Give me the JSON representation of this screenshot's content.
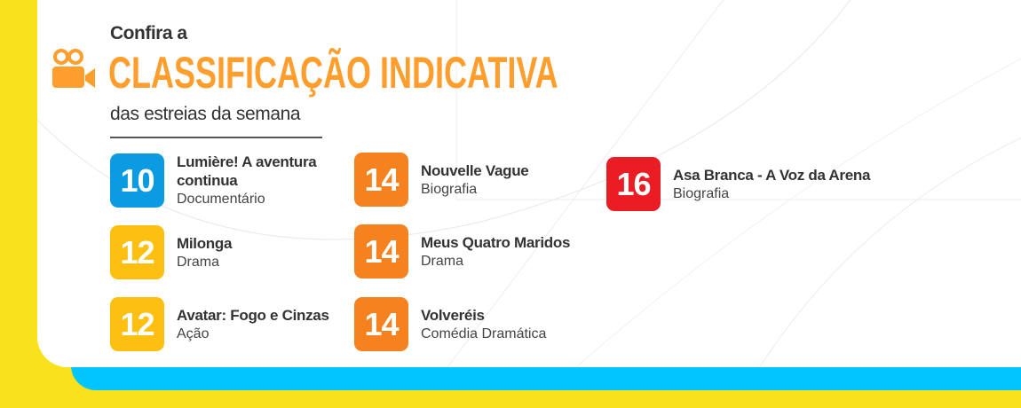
{
  "header": {
    "pre": "Confira a",
    "title": "CLASSIFICAÇÃO INDICATIVA",
    "sub": "das estreias da semana",
    "icon": "movie-camera-icon"
  },
  "colors": {
    "background": "#F9E21B",
    "strip": "#00C5FF",
    "accent": "#FF9E2C",
    "rating_10": "#0A9BE3",
    "rating_12": "#FDC010",
    "rating_14": "#F5821F",
    "rating_16": "#EA1D25"
  },
  "movies": [
    {
      "rating": "10",
      "title": "Lumière! A aventura continua",
      "genre": "Documentário"
    },
    {
      "rating": "12",
      "title": "Milonga",
      "genre": "Drama"
    },
    {
      "rating": "12",
      "title": "Avatar: Fogo e Cinzas",
      "genre": "Ação"
    },
    {
      "rating": "14",
      "title": "Nouvelle Vague",
      "genre": "Biografia"
    },
    {
      "rating": "14",
      "title": "Meus Quatro Maridos",
      "genre": "Drama"
    },
    {
      "rating": "14",
      "title": "Volveréis",
      "genre": "Comédia Dramática"
    },
    {
      "rating": "16",
      "title": "Asa Branca - A Voz da Arena",
      "genre": "Biografia"
    }
  ]
}
